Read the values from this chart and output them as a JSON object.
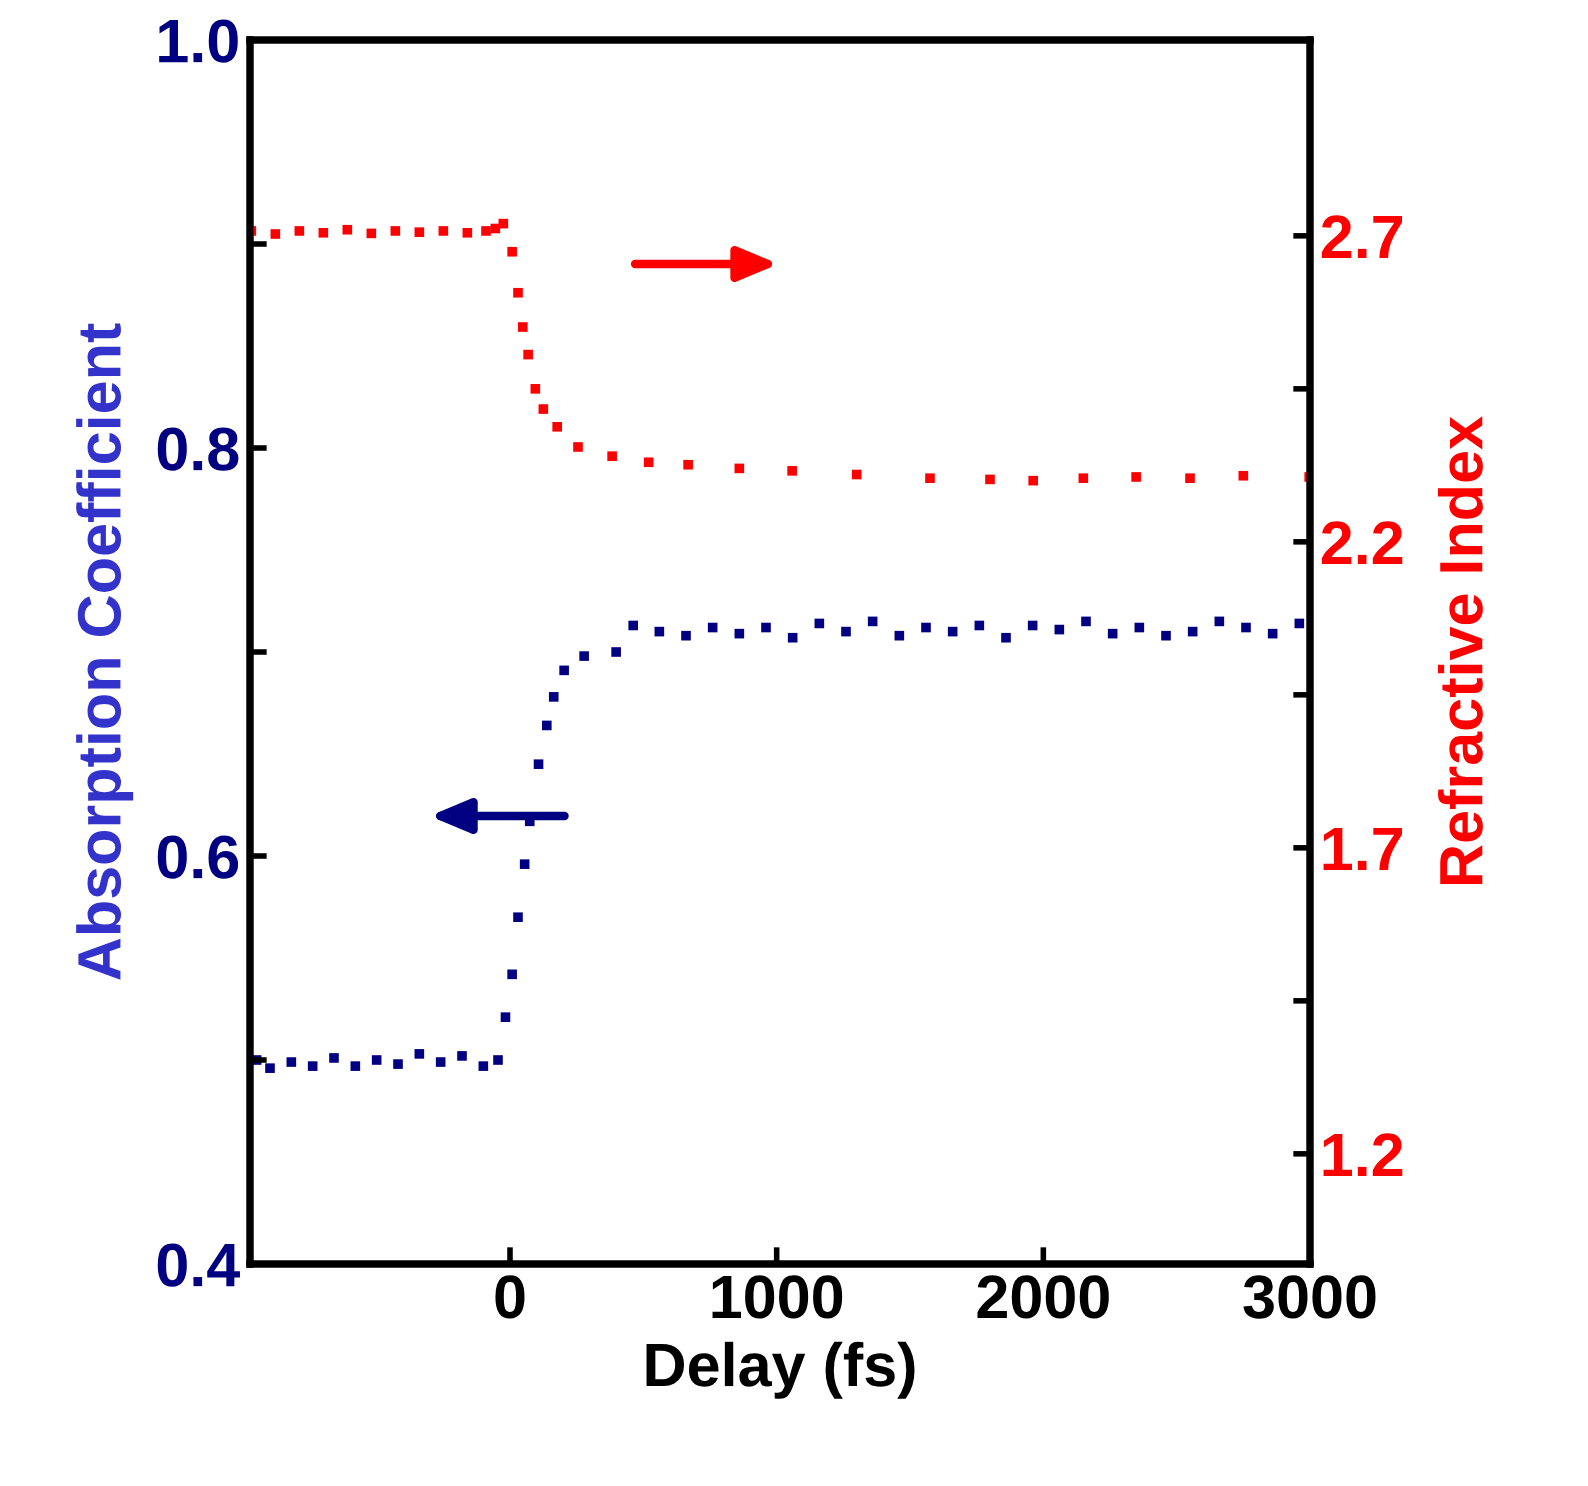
{
  "chart_data": {
    "type": "scatter",
    "xlabel": "Delay (fs)",
    "ylabel": "Absorption Coefficient",
    "y2label": "Refractive Index",
    "marker": "square",
    "grid": false,
    "legend": false,
    "xlim": [
      -975,
      3000
    ],
    "xticks": [
      0,
      1000,
      2000,
      3000
    ],
    "ylim": [
      0.4,
      1.0
    ],
    "yticks": [
      0.4,
      {
        "value": 0.5,
        "label": null
      },
      0.6,
      {
        "value": 0.7,
        "label": null
      },
      0.8,
      {
        "value": 0.9,
        "label": null
      },
      {
        "value": 1.0,
        "label": "1.0"
      }
    ],
    "y2lim": [
      1.02,
      3.02
    ],
    "y2ticks": [
      1.2,
      {
        "value": 1.45,
        "label": null
      },
      1.7,
      {
        "value": 1.95,
        "label": null
      },
      2.2,
      {
        "value": 2.45,
        "label": null
      },
      2.7
    ],
    "series": [
      {
        "color": "#000080",
        "axis": "y",
        "x": [
          -950,
          -900,
          -820,
          -740,
          -660,
          -580,
          -500,
          -420,
          -340,
          -260,
          -180,
          -100,
          -45,
          -17,
          8,
          30,
          55,
          74,
          107,
          138,
          164,
          203,
          278,
          398,
          462,
          560,
          660,
          760,
          860,
          960,
          1060,
          1160,
          1260,
          1360,
          1460,
          1560,
          1660,
          1760,
          1860,
          1960,
          2060,
          2160,
          2260,
          2360,
          2460,
          2560,
          2660,
          2760,
          2860,
          2960
        ],
        "values": [
          0.5,
          0.496,
          0.499,
          0.497,
          0.501,
          0.497,
          0.5,
          0.498,
          0.503,
          0.499,
          0.502,
          0.497,
          0.5,
          0.521,
          0.542,
          0.57,
          0.596,
          0.617,
          0.645,
          0.664,
          0.678,
          0.691,
          0.698,
          0.7,
          0.713,
          0.71,
          0.708,
          0.712,
          0.709,
          0.712,
          0.707,
          0.714,
          0.71,
          0.715,
          0.708,
          0.712,
          0.71,
          0.713,
          0.707,
          0.713,
          0.711,
          0.715,
          0.709,
          0.712,
          0.708,
          0.71,
          0.715,
          0.712,
          0.709,
          0.714
        ]
      },
      {
        "color": "#ff0000",
        "axis": "y2",
        "x": [
          -970,
          -880,
          -790,
          -700,
          -610,
          -520,
          -430,
          -340,
          -250,
          -160,
          -90,
          -55,
          -25,
          8,
          30,
          48,
          68,
          95,
          125,
          177,
          255,
          383,
          520,
          668,
          860,
          1058,
          1300,
          1575,
          1800,
          1962,
          2150,
          2348,
          2550,
          2750,
          2997
        ],
        "values": [
          2.708,
          2.703,
          2.708,
          2.705,
          2.71,
          2.704,
          2.708,
          2.706,
          2.708,
          2.705,
          2.708,
          2.712,
          2.72,
          2.674,
          2.607,
          2.551,
          2.506,
          2.45,
          2.417,
          2.388,
          2.355,
          2.34,
          2.33,
          2.326,
          2.32,
          2.316,
          2.31,
          2.304,
          2.302,
          2.3,
          2.304,
          2.306,
          2.304,
          2.308,
          2.306
        ]
      }
    ]
  }
}
